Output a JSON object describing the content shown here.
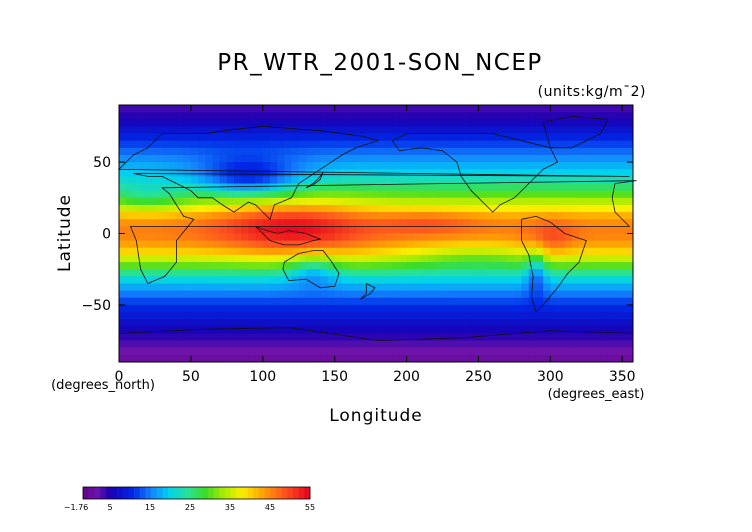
{
  "chart_data": {
    "type": "heatmap",
    "title": "PR_WTR_2001-SON_NCEP",
    "units": "(units:kg/m¯2)",
    "xlabel": "Longitude",
    "ylabel": "Latitude",
    "x_unit_label": "(degrees_east)",
    "y_unit_label": "(degrees_north)",
    "xlim": [
      0,
      357.5
    ],
    "ylim": [
      -90,
      90
    ],
    "xticks": [
      0,
      50,
      100,
      150,
      200,
      250,
      300,
      350
    ],
    "yticks": [
      50,
      0,
      -50
    ],
    "colorbar": {
      "ticks": [
        "-1.76",
        "5",
        "15",
        "25",
        "35",
        "45",
        "55"
      ],
      "tick_values": [
        -1.76,
        5,
        15,
        25,
        35,
        45,
        55
      ],
      "min": -1.76,
      "max": 55
    },
    "grid": false,
    "latitude_profile": {
      "lat": [
        90,
        80,
        70,
        60,
        50,
        40,
        30,
        20,
        10,
        0,
        -10,
        -20,
        -30,
        -40,
        -50,
        -60,
        -70,
        -80,
        -90
      ],
      "pw": [
        3,
        5,
        9,
        13,
        17,
        21,
        28,
        36,
        44,
        46,
        42,
        33,
        22,
        16,
        11,
        8,
        5,
        2,
        0
      ]
    }
  }
}
